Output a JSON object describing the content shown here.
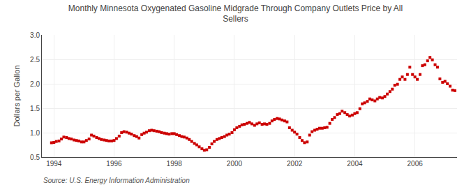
{
  "chart_data": {
    "type": "scatter",
    "title": "Monthly Minnesota Oxygenated Gasoline Midgrade Through Company Outlets Price by All\nSellers",
    "y_label": "Dollars per Gallon",
    "annotations": [
      "Source: U.S. Energy Information Administration"
    ],
    "xlim": [
      1993.6,
      2007.4
    ],
    "ylim": [
      0.5,
      3.0
    ],
    "xticks": [
      1994,
      1996,
      1998,
      2000,
      2002,
      2004,
      2006
    ],
    "yticks": [
      0.5,
      {
        "value": 1.0,
        "label": "1.0"
      },
      1.5,
      {
        "value": 2.0,
        "label": "2.0"
      },
      2.5,
      {
        "value": 3.0,
        "label": "3.0"
      }
    ],
    "grid": true,
    "color": "#cc0000",
    "marker": "square",
    "x": [
      1993.92,
      1994.0,
      1994.08,
      1994.17,
      1994.25,
      1994.33,
      1994.42,
      1994.5,
      1994.58,
      1994.67,
      1994.75,
      1994.83,
      1994.92,
      1995.0,
      1995.08,
      1995.17,
      1995.25,
      1995.33,
      1995.42,
      1995.5,
      1995.58,
      1995.67,
      1995.75,
      1995.83,
      1995.92,
      1996.0,
      1996.08,
      1996.17,
      1996.25,
      1996.33,
      1996.42,
      1996.5,
      1996.58,
      1996.67,
      1996.75,
      1996.83,
      1996.92,
      1997.0,
      1997.08,
      1997.17,
      1997.25,
      1997.33,
      1997.42,
      1997.5,
      1997.58,
      1997.67,
      1997.75,
      1997.83,
      1997.92,
      1998.0,
      1998.08,
      1998.17,
      1998.25,
      1998.33,
      1998.42,
      1998.5,
      1998.58,
      1998.67,
      1998.75,
      1998.83,
      1998.92,
      1999.0,
      1999.08,
      1999.17,
      1999.25,
      1999.33,
      1999.42,
      1999.5,
      1999.58,
      1999.67,
      1999.75,
      1999.83,
      1999.92,
      2000.0,
      2000.08,
      2000.17,
      2000.25,
      2000.33,
      2000.42,
      2000.5,
      2000.58,
      2000.67,
      2000.75,
      2000.83,
      2000.92,
      2001.0,
      2001.08,
      2001.17,
      2001.25,
      2001.33,
      2001.42,
      2001.5,
      2001.58,
      2001.67,
      2001.75,
      2001.83,
      2001.92,
      2002.0,
      2002.08,
      2002.17,
      2002.25,
      2002.33,
      2002.42,
      2002.5,
      2002.58,
      2002.67,
      2002.75,
      2002.83,
      2002.92,
      2003.0,
      2003.08,
      2003.17,
      2003.25,
      2003.33,
      2003.42,
      2003.5,
      2003.58,
      2003.67,
      2003.75,
      2003.83,
      2003.92,
      2004.0,
      2004.08,
      2004.17,
      2004.25,
      2004.33,
      2004.42,
      2004.5,
      2004.58,
      2004.67,
      2004.75,
      2004.83,
      2004.92,
      2005.0,
      2005.08,
      2005.17,
      2005.25,
      2005.33,
      2005.42,
      2005.5,
      2005.58,
      2005.67,
      2005.75,
      2005.83,
      2005.92,
      2006.0,
      2006.08,
      2006.17,
      2006.25,
      2006.33,
      2006.42,
      2006.5,
      2006.58,
      2006.67,
      2006.75,
      2006.83,
      2006.92,
      2007.0,
      2007.08,
      2007.17,
      2007.25,
      2007.33
    ],
    "values": [
      0.793,
      0.8,
      0.82,
      0.83,
      0.87,
      0.91,
      0.9,
      0.88,
      0.87,
      0.85,
      0.84,
      0.83,
      0.81,
      0.81,
      0.84,
      0.87,
      0.95,
      0.93,
      0.9,
      0.88,
      0.86,
      0.85,
      0.84,
      0.83,
      0.83,
      0.84,
      0.88,
      0.93,
      1.0,
      1.02,
      1.01,
      0.99,
      0.97,
      0.94,
      0.92,
      0.89,
      0.96,
      0.99,
      1.01,
      1.04,
      1.05,
      1.04,
      1.03,
      1.02,
      1.0,
      0.99,
      0.98,
      0.97,
      0.98,
      0.98,
      0.96,
      0.94,
      0.92,
      0.91,
      0.89,
      0.86,
      0.82,
      0.78,
      0.75,
      0.71,
      0.67,
      0.64,
      0.65,
      0.7,
      0.77,
      0.82,
      0.86,
      0.88,
      0.9,
      0.92,
      0.95,
      0.97,
      1.0,
      1.06,
      1.1,
      1.13,
      1.16,
      1.17,
      1.19,
      1.21,
      1.18,
      1.15,
      1.18,
      1.2,
      1.17,
      1.18,
      1.17,
      1.19,
      1.24,
      1.27,
      1.29,
      1.28,
      1.26,
      1.24,
      1.22,
      1.1,
      1.05,
      1.01,
      0.97,
      0.9,
      0.84,
      0.795,
      0.81,
      0.95,
      1.02,
      1.05,
      1.07,
      1.09,
      1.09,
      1.1,
      1.11,
      1.19,
      1.27,
      1.31,
      1.37,
      1.39,
      1.44,
      1.41,
      1.37,
      1.34,
      1.36,
      1.39,
      1.41,
      1.49,
      1.59,
      1.61,
      1.64,
      1.69,
      1.67,
      1.65,
      1.69,
      1.72,
      1.71,
      1.74,
      1.79,
      1.84,
      1.89,
      1.97,
      1.99,
      2.09,
      2.14,
      2.09,
      2.19,
      2.34,
      2.19,
      2.14,
      2.09,
      2.19,
      2.37,
      2.39,
      2.47,
      2.54,
      2.49,
      2.39,
      2.34,
      2.1,
      2.03,
      2.05,
      2.0,
      1.95,
      1.87,
      1.86
    ]
  }
}
